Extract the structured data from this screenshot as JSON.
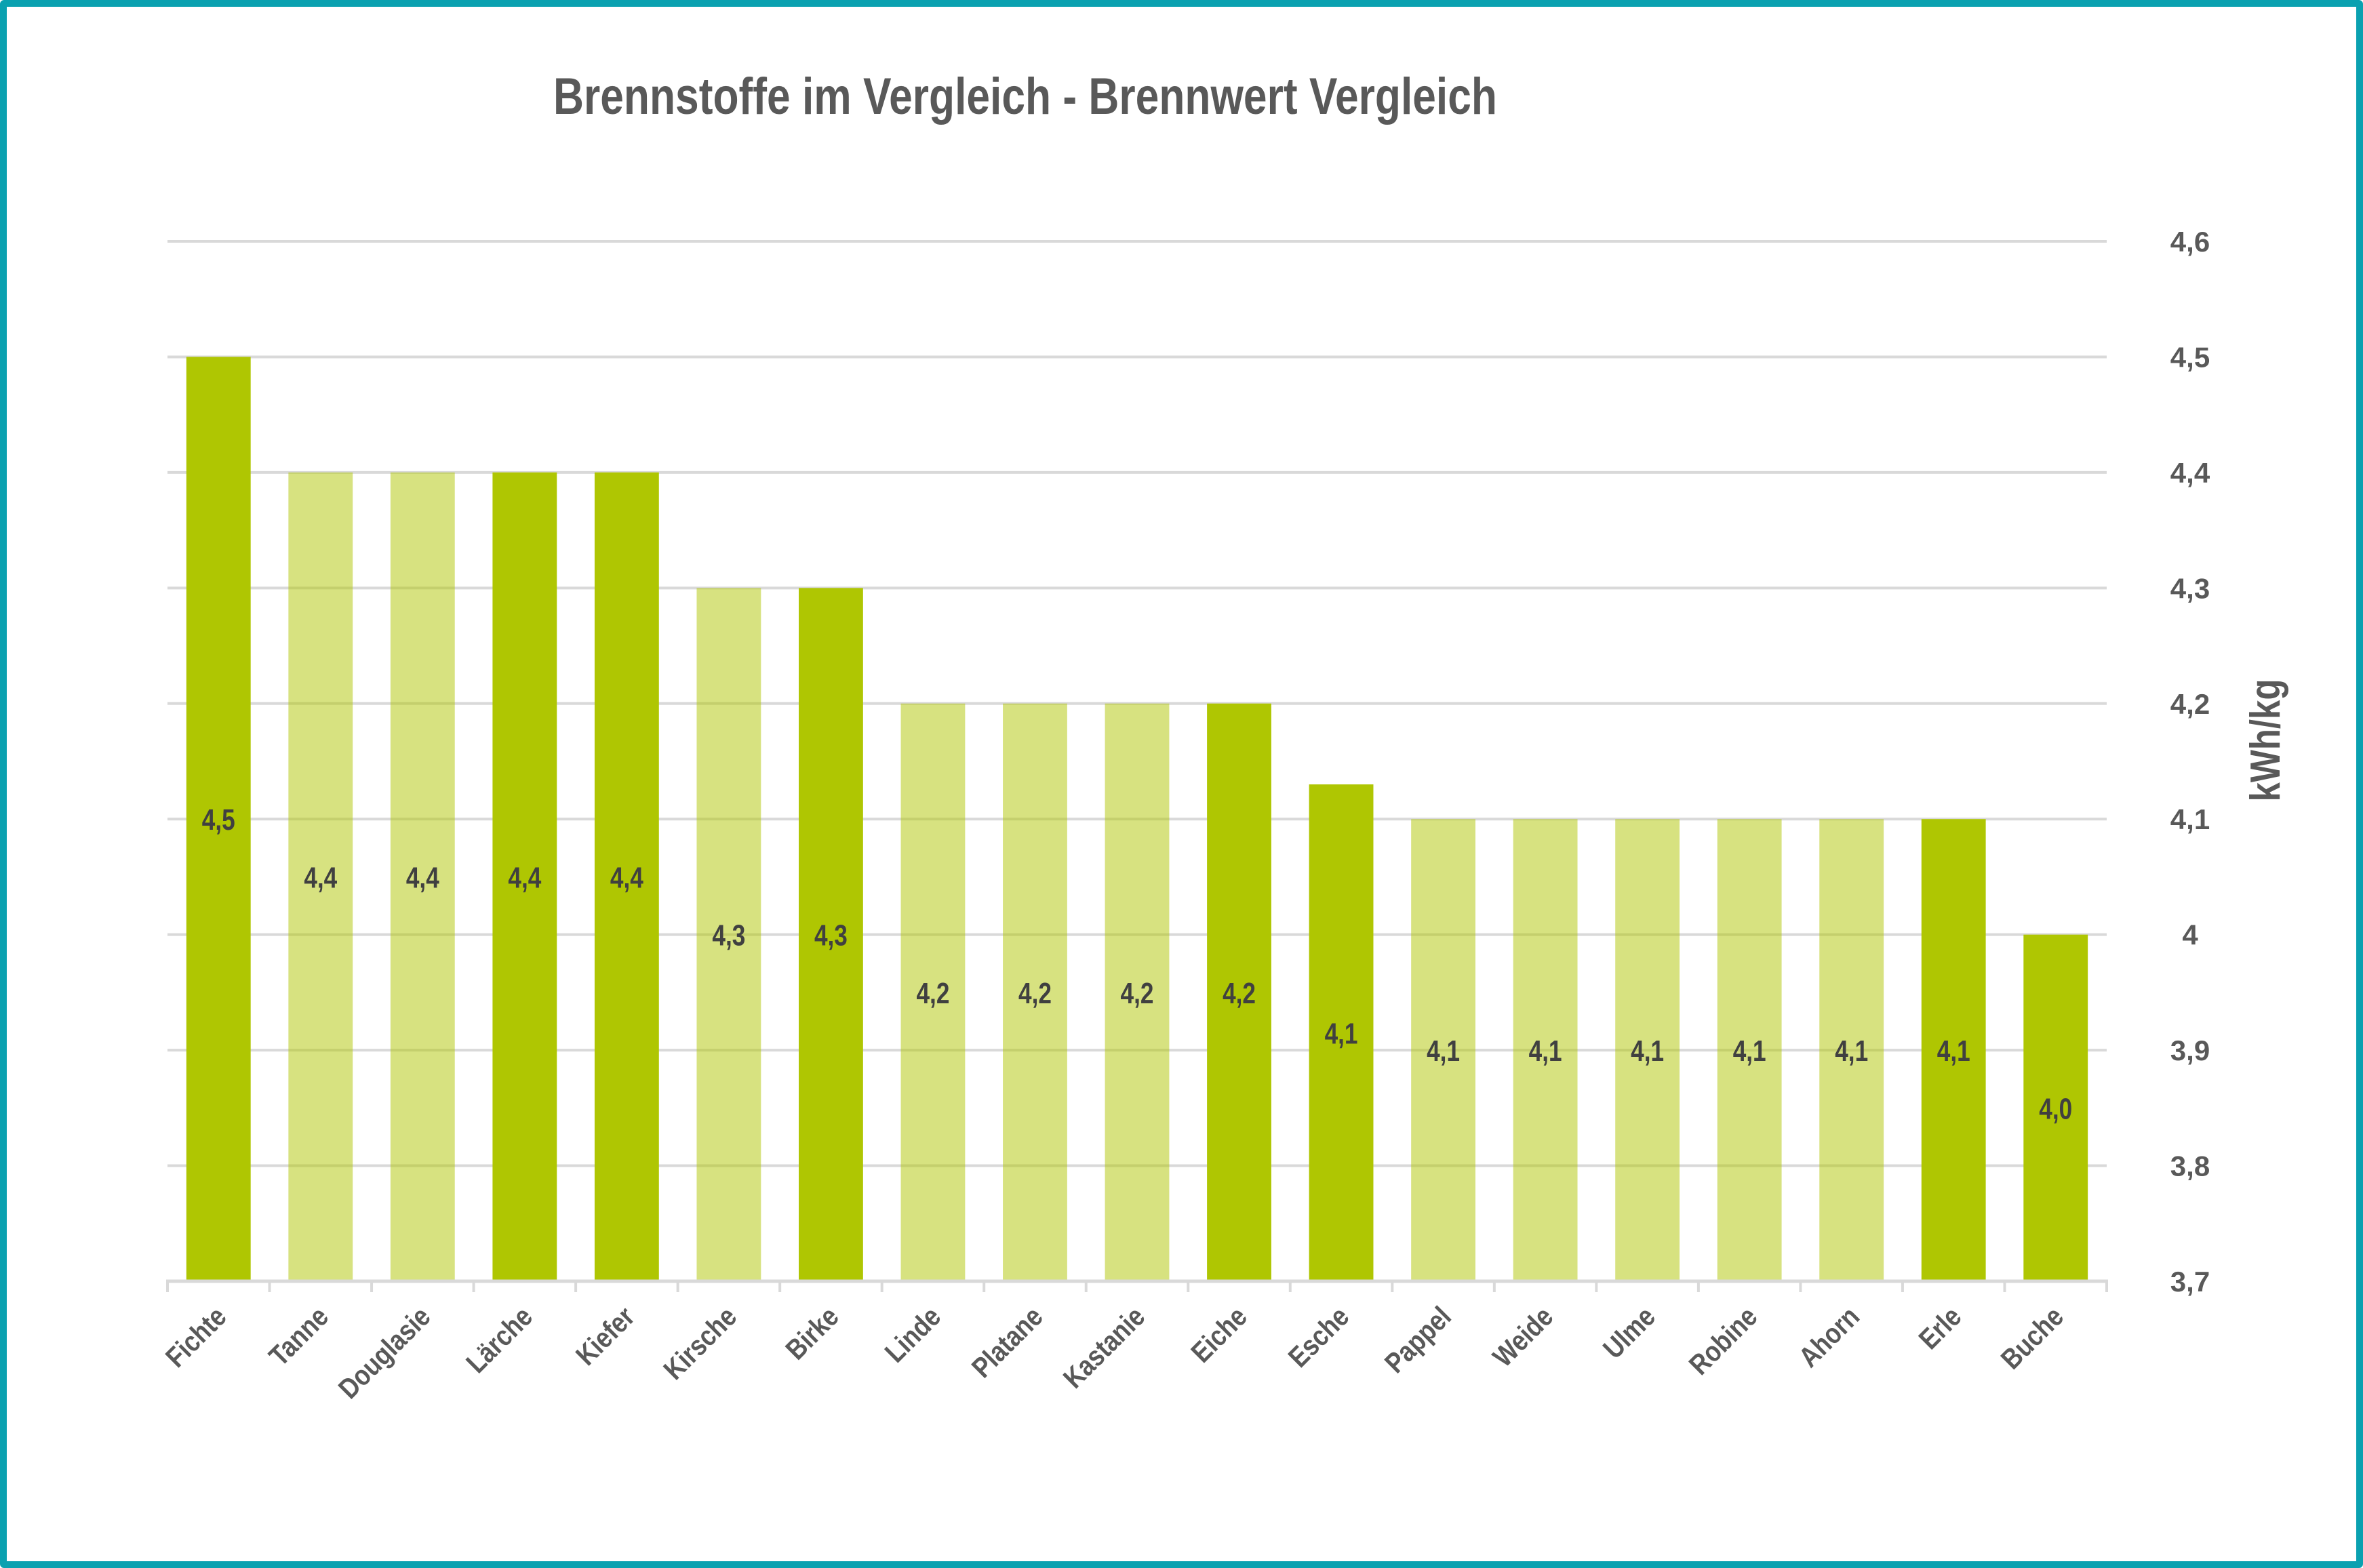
{
  "chart_data": {
    "type": "bar",
    "title": "Brennstoffe im Vergleich - Brennwert Vergleich",
    "xlabel": "",
    "ylabel": "kWh/kg",
    "y_axis_position": "right",
    "ylim": [
      3.7,
      4.6
    ],
    "yticks": [
      3.7,
      3.8,
      3.9,
      4.0,
      4.1,
      4.2,
      4.3,
      4.4,
      4.5,
      4.6
    ],
    "ytick_labels": [
      "3,7",
      "3,8",
      "3,9",
      "4",
      "4,1",
      "4,2",
      "4,3",
      "4,4",
      "4,5",
      "4,6"
    ],
    "grid": true,
    "legend": "none",
    "categories": [
      "Fichte",
      "Tanne",
      "Douglasie",
      "Lärche",
      "Kiefer",
      "Kirsche",
      "Birke",
      "Linde",
      "Platane",
      "Kastanie",
      "Eiche",
      "Esche",
      "Pappel",
      "Weide",
      "Ulme",
      "Robine",
      "Ahorn",
      "Erle",
      "Buche"
    ],
    "values": [
      4.5,
      4.4,
      4.4,
      4.4,
      4.4,
      4.3,
      4.3,
      4.2,
      4.2,
      4.2,
      4.2,
      4.13,
      4.1,
      4.1,
      4.1,
      4.1,
      4.1,
      4.1,
      4.0
    ],
    "data_labels": [
      "4,5",
      "4,4",
      "4,4",
      "4,4",
      "4,4",
      "4,3",
      "4,3",
      "4,2",
      "4,2",
      "4,2",
      "4,2",
      "4,1",
      "4,1",
      "4,1",
      "4,1",
      "4,1",
      "4,1",
      "4,1",
      "4,0"
    ],
    "bar_shade": [
      "dark",
      "light",
      "light",
      "dark",
      "dark",
      "light",
      "dark",
      "light",
      "light",
      "light",
      "dark",
      "dark",
      "light",
      "light",
      "light",
      "light",
      "light",
      "dark",
      "dark"
    ],
    "colors": {
      "dark": "#AFC602",
      "light": "#D6E382",
      "grid": "#D9D9D9",
      "frame": "#0AA1B0",
      "text": "#595959",
      "data_label": "#404040"
    }
  }
}
